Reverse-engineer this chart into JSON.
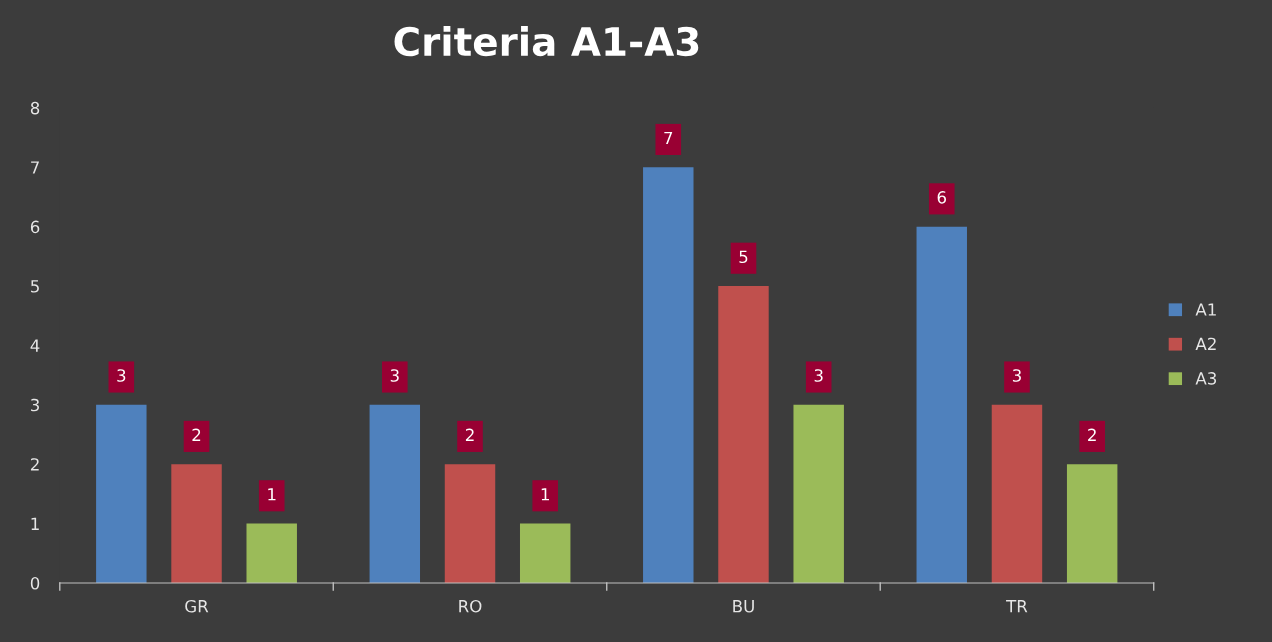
{
  "chart_data": {
    "type": "bar",
    "title": "Criteria A1-A3",
    "categories": [
      "GR",
      "RO",
      "BU",
      "TR"
    ],
    "series": [
      {
        "name": "A1",
        "color": "#4f81bd",
        "values": [
          3,
          3,
          7,
          6
        ]
      },
      {
        "name": "A2",
        "color": "#c0504d",
        "values": [
          2,
          2,
          5,
          3
        ]
      },
      {
        "name": "A3",
        "color": "#9bbb59",
        "values": [
          1,
          1,
          3,
          2
        ]
      }
    ],
    "ylim": [
      0,
      8
    ],
    "yticks": [
      0,
      1,
      2,
      3,
      4,
      5,
      6,
      7,
      8
    ],
    "grid": false,
    "legend": "right",
    "data_labels": true
  }
}
